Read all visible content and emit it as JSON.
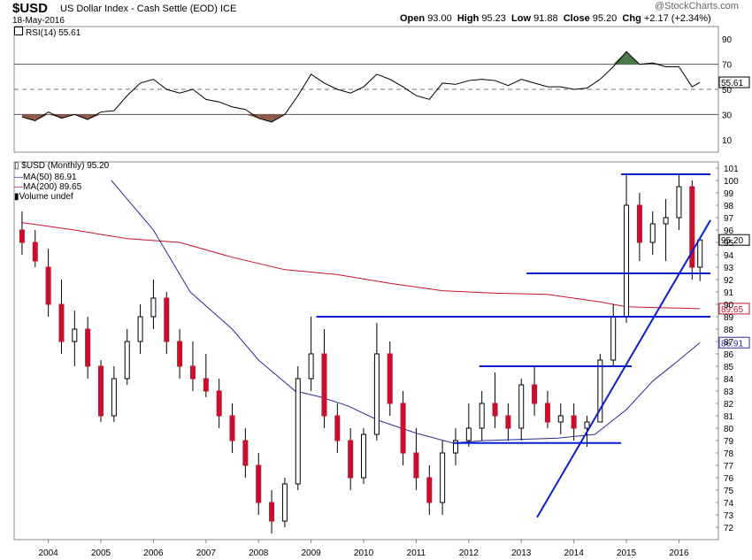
{
  "header": {
    "symbol": "$USD",
    "description": "US Dollar Index - Cash Settle (EOD)",
    "exchange": "ICE",
    "date": "18-May-2016",
    "open_label": "Open",
    "open": "93.00",
    "high_label": "High",
    "high": "95.23",
    "low_label": "Low",
    "low": "91.88",
    "close_label": "Close",
    "close": "95.20",
    "chg_label": "Chg",
    "chg": "+2.17 (+2.34%)",
    "watermark": "@StockCharts.com"
  },
  "rsi_panel": {
    "legend": "RSI(14) 55.61",
    "current": "55.61",
    "ticks": [
      "90",
      "70",
      "50",
      "30",
      "10"
    ]
  },
  "price_panel": {
    "legend_main": "$USD (Monthly) 95.20",
    "legend_ma50": "MA(50) 86.91",
    "legend_ma200": "MA(200) 89.65",
    "legend_volume": "Volume undef",
    "price_tag": "95.20",
    "ma200_tag": "89.65",
    "ma50_tag": "86.91",
    "y_ticks": [
      "101",
      "100",
      "99",
      "98",
      "97",
      "96",
      "95",
      "94",
      "93",
      "92",
      "91",
      "90",
      "89",
      "88",
      "87",
      "86",
      "85",
      "84",
      "83",
      "82",
      "81",
      "80",
      "79",
      "78",
      "77",
      "76",
      "75",
      "74",
      "73",
      "72"
    ]
  },
  "colors": {
    "up": "#ffffff",
    "down": "#c8102e",
    "ma50": "#2b2b9b",
    "ma200": "#c8102e",
    "trend": "#0a1fd0",
    "rsi_over": "#4a7a4a",
    "rsi_under": "#8b5a4a"
  },
  "chart_data": {
    "type": "candlestick",
    "title": "$USD US Dollar Index - Cash Settle (EOD) ICE",
    "x_ticks": [
      "2004",
      "2005",
      "2006",
      "2007",
      "2008",
      "2009",
      "2010",
      "2011",
      "2012",
      "2013",
      "2014",
      "2015",
      "2016"
    ],
    "ylim": [
      71,
      101.5
    ],
    "series": [
      {
        "name": "$USD (Monthly)",
        "values": [
          [
            2003.5,
            96,
            97.5,
            94,
            95
          ],
          [
            2003.75,
            95,
            96,
            93,
            93.5
          ],
          [
            2004.0,
            93,
            94.5,
            89,
            90
          ],
          [
            2004.25,
            90,
            92,
            86,
            87
          ],
          [
            2004.5,
            87,
            89.5,
            85,
            88
          ],
          [
            2004.75,
            88,
            89,
            84,
            85
          ],
          [
            2005.0,
            85,
            85.5,
            80.5,
            81
          ],
          [
            2005.25,
            81,
            85,
            80.5,
            84
          ],
          [
            2005.5,
            84,
            88,
            83.5,
            87
          ],
          [
            2005.75,
            87,
            90,
            86,
            89
          ],
          [
            2006.0,
            89,
            92,
            88,
            90.5
          ],
          [
            2006.25,
            90.5,
            91,
            86,
            87
          ],
          [
            2006.5,
            87,
            88,
            84,
            85
          ],
          [
            2006.75,
            85,
            87,
            83,
            84
          ],
          [
            2007.0,
            84,
            86,
            82.5,
            83
          ],
          [
            2007.25,
            83,
            84,
            80,
            81
          ],
          [
            2007.5,
            81,
            82,
            78,
            79
          ],
          [
            2007.75,
            79,
            80,
            76,
            77
          ],
          [
            2008.0,
            77,
            78,
            73,
            74
          ],
          [
            2008.25,
            74,
            75,
            71.5,
            72.5
          ],
          [
            2008.5,
            72.5,
            76,
            72,
            75.5
          ],
          [
            2008.75,
            75.5,
            85,
            75,
            84
          ],
          [
            2009.0,
            84,
            89,
            83,
            86
          ],
          [
            2009.25,
            86,
            88,
            80,
            81
          ],
          [
            2009.5,
            81,
            82,
            78,
            79
          ],
          [
            2009.75,
            79,
            80,
            75,
            76
          ],
          [
            2010.0,
            76,
            80,
            75.5,
            79.5
          ],
          [
            2010.25,
            79.5,
            88.5,
            79,
            86
          ],
          [
            2010.5,
            86,
            87,
            81,
            82
          ],
          [
            2010.75,
            82,
            83,
            77,
            78
          ],
          [
            2011.0,
            78,
            80,
            75,
            76
          ],
          [
            2011.25,
            76,
            77,
            73,
            74
          ],
          [
            2011.5,
            74,
            79,
            73,
            78
          ],
          [
            2011.75,
            78,
            80,
            77,
            79
          ],
          [
            2012.0,
            79,
            82,
            78.5,
            80
          ],
          [
            2012.25,
            80,
            83,
            79,
            82
          ],
          [
            2012.5,
            82,
            84.5,
            80,
            81
          ],
          [
            2012.75,
            81,
            82,
            79,
            80
          ],
          [
            2013.0,
            80,
            84,
            79,
            83.5
          ],
          [
            2013.25,
            83.5,
            85,
            81,
            82
          ],
          [
            2013.5,
            82,
            83,
            80,
            80.5
          ],
          [
            2013.75,
            80.5,
            82,
            79.5,
            81
          ],
          [
            2014.0,
            81,
            82,
            79,
            80
          ],
          [
            2014.25,
            80,
            81,
            78.5,
            80.5
          ],
          [
            2014.5,
            80.5,
            86,
            80.5,
            85.5
          ],
          [
            2014.75,
            85.5,
            90,
            85,
            89
          ],
          [
            2015.0,
            89,
            100.5,
            88.5,
            98
          ],
          [
            2015.25,
            98,
            99,
            93.5,
            95
          ],
          [
            2015.5,
            95,
            97.5,
            94,
            96.5
          ],
          [
            2015.75,
            96.5,
            98.5,
            93.5,
            97
          ],
          [
            2016.0,
            97,
            100.5,
            96,
            99.5
          ],
          [
            2016.25,
            99.5,
            100,
            92,
            93
          ],
          [
            2016.4,
            93,
            95.23,
            91.88,
            95.2
          ]
        ]
      },
      {
        "name": "MA(50)",
        "values": [
          [
            2005.2,
            100
          ],
          [
            2006.0,
            96
          ],
          [
            2006.7,
            91
          ],
          [
            2007.5,
            88
          ],
          [
            2008.0,
            85.5
          ],
          [
            2008.7,
            83
          ],
          [
            2009.2,
            82.5
          ],
          [
            2009.7,
            81.8
          ],
          [
            2010.3,
            80.6
          ],
          [
            2011.0,
            79.6
          ],
          [
            2011.7,
            78.8
          ],
          [
            2012.3,
            79.0
          ],
          [
            2013.0,
            79.1
          ],
          [
            2013.7,
            79.2
          ],
          [
            2014.4,
            79.5
          ],
          [
            2015.0,
            81.5
          ],
          [
            2015.5,
            83.8
          ],
          [
            2016.0,
            85.5
          ],
          [
            2016.4,
            86.91
          ]
        ]
      },
      {
        "name": "MA(200)",
        "values": [
          [
            2003.5,
            96.6
          ],
          [
            2004.5,
            96.0
          ],
          [
            2005.5,
            95.3
          ],
          [
            2006.5,
            95.0
          ],
          [
            2007.5,
            93.8
          ],
          [
            2008.5,
            92.8
          ],
          [
            2009.5,
            92.4
          ],
          [
            2010.5,
            91.7
          ],
          [
            2011.5,
            91.1
          ],
          [
            2012.5,
            90.9
          ],
          [
            2013.5,
            90.8
          ],
          [
            2014.5,
            90.2
          ],
          [
            2015.0,
            89.8
          ],
          [
            2016.4,
            89.65
          ]
        ]
      }
    ],
    "trend_lines": [
      [
        2014.9,
        100.5,
        2016.6,
        100.5
      ],
      [
        2013.1,
        92.5,
        2016.6,
        92.5
      ],
      [
        2009.1,
        89.0,
        2016.6,
        89.0
      ],
      [
        2012.2,
        85.0,
        2015.1,
        85.0
      ],
      [
        2011.7,
        78.8,
        2014.9,
        78.8
      ],
      [
        2013.3,
        72.8,
        2016.6,
        96.8
      ]
    ],
    "rsi": {
      "name": "RSI(14)",
      "ylim": [
        0,
        100
      ],
      "levels": [
        70,
        30
      ],
      "values": [
        [
          2003.5,
          28
        ],
        [
          2003.75,
          25
        ],
        [
          2004.0,
          32
        ],
        [
          2004.25,
          27
        ],
        [
          2004.5,
          30
        ],
        [
          2004.75,
          26
        ],
        [
          2005.0,
          32
        ],
        [
          2005.25,
          33
        ],
        [
          2005.5,
          45
        ],
        [
          2005.75,
          55
        ],
        [
          2006.0,
          58
        ],
        [
          2006.25,
          50
        ],
        [
          2006.5,
          47
        ],
        [
          2006.75,
          50
        ],
        [
          2007.0,
          42
        ],
        [
          2007.25,
          40
        ],
        [
          2007.5,
          36
        ],
        [
          2007.75,
          34
        ],
        [
          2008.0,
          27
        ],
        [
          2008.25,
          24
        ],
        [
          2008.5,
          30
        ],
        [
          2008.75,
          45
        ],
        [
          2009.0,
          62
        ],
        [
          2009.25,
          55
        ],
        [
          2009.5,
          50
        ],
        [
          2009.75,
          47
        ],
        [
          2010.0,
          52
        ],
        [
          2010.25,
          62
        ],
        [
          2010.5,
          58
        ],
        [
          2010.75,
          52
        ],
        [
          2011.0,
          45
        ],
        [
          2011.25,
          42
        ],
        [
          2011.5,
          55
        ],
        [
          2011.75,
          54
        ],
        [
          2012.0,
          57
        ],
        [
          2012.25,
          58
        ],
        [
          2012.5,
          57
        ],
        [
          2012.75,
          53
        ],
        [
          2013.0,
          58
        ],
        [
          2013.25,
          55
        ],
        [
          2013.5,
          52
        ],
        [
          2013.75,
          52
        ],
        [
          2014.0,
          50
        ],
        [
          2014.25,
          51
        ],
        [
          2014.5,
          58
        ],
        [
          2014.75,
          68
        ],
        [
          2015.0,
          80
        ],
        [
          2015.25,
          70
        ],
        [
          2015.5,
          71
        ],
        [
          2015.75,
          68
        ],
        [
          2016.0,
          68
        ],
        [
          2016.25,
          52
        ],
        [
          2016.4,
          55.61
        ]
      ]
    }
  }
}
